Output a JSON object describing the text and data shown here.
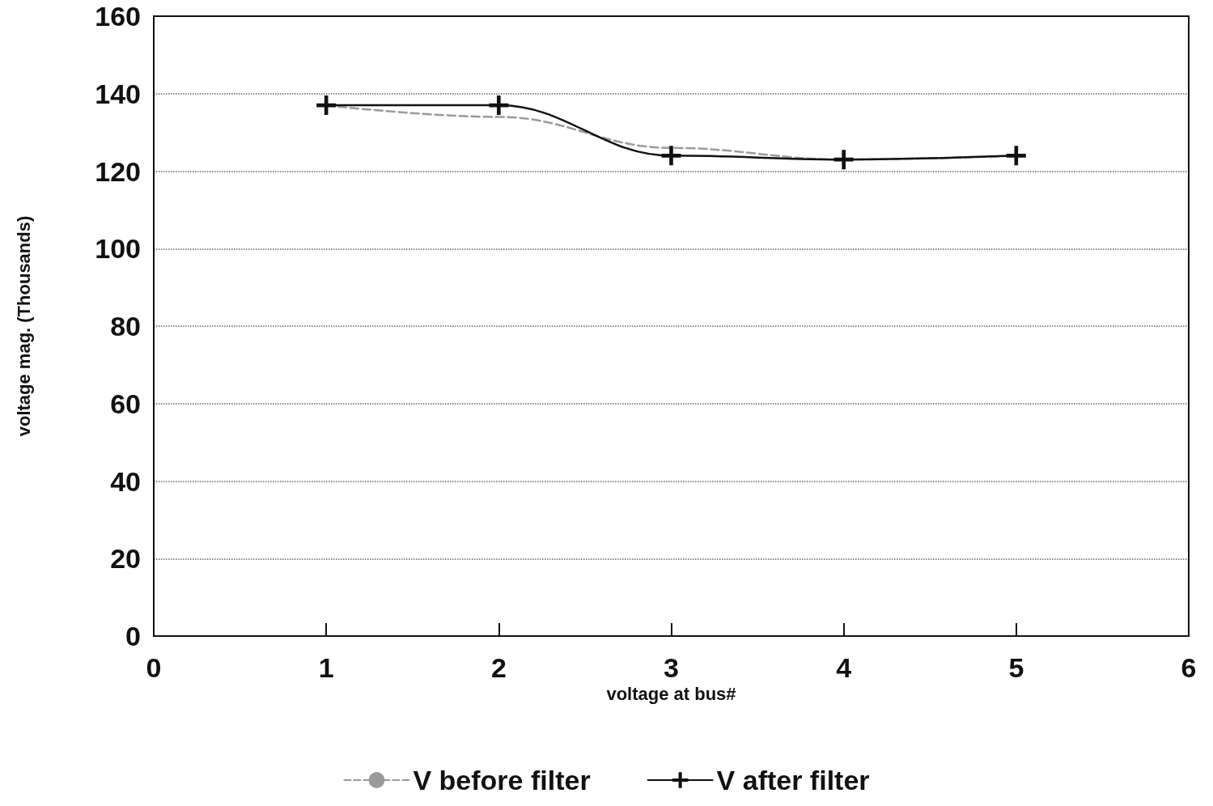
{
  "chart_data": {
    "type": "line",
    "xlabel": "voltage at bus#",
    "ylabel": "voltage mag. (Thousands)",
    "x": [
      1,
      2,
      3,
      4,
      5
    ],
    "series": [
      {
        "name": "V before filter",
        "color": "#9a9a9a",
        "line_style": "dashed",
        "marker": "none",
        "values": [
          137,
          134,
          126,
          123,
          124
        ]
      },
      {
        "name": "V after filter",
        "color": "#111111",
        "line_style": "solid",
        "marker": "cross",
        "values": [
          137,
          137,
          124,
          123,
          124
        ]
      }
    ],
    "xlim": [
      0,
      6
    ],
    "xticks": [
      0,
      1,
      2,
      3,
      4,
      5,
      6
    ],
    "ylim": [
      0,
      160
    ],
    "yticks": [
      0,
      20,
      40,
      60,
      80,
      100,
      120,
      140,
      160
    ],
    "grid": "y",
    "legend": "bottom"
  }
}
